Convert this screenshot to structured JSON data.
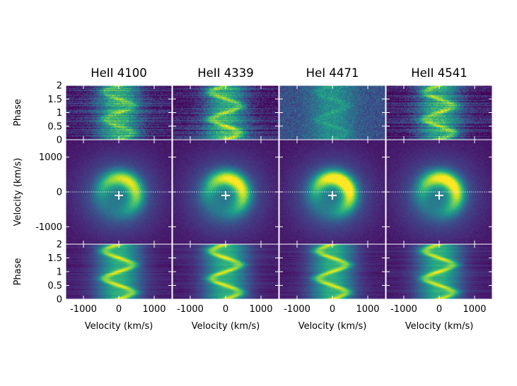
{
  "chart_data": {
    "type": "heatmap",
    "description_units": {
      "velocity": "km/s",
      "phase": "orbital phase"
    },
    "columns": [
      {
        "title": "HeII 4100",
        "map_ring_strength": 0.75,
        "trail_contrast": 0.55
      },
      {
        "title": "HeII 4339",
        "map_ring_strength": 0.85,
        "trail_contrast": 0.85
      },
      {
        "title": "HeI 4471",
        "map_ring_strength": 1.0,
        "trail_contrast": 0.4
      },
      {
        "title": "HeII 4541",
        "map_ring_strength": 0.9,
        "trail_contrast": 0.8
      }
    ],
    "rows": [
      {
        "name": "observed_trailed_spectra",
        "ylabel": "Phase",
        "yticks": [
          0.5,
          1,
          1.5,
          2
        ],
        "ylim": [
          0,
          2
        ]
      },
      {
        "name": "doppler_map",
        "ylabel": "Velocity (km/s)",
        "yticks": [
          -1000,
          0,
          1000
        ],
        "ylim": [
          -1500,
          1500
        ]
      },
      {
        "name": "reconstructed_trailed_spectra",
        "ylabel": "Phase",
        "yticks": [
          0,
          0.5,
          1,
          1.5,
          2
        ],
        "ylim": [
          0,
          2
        ]
      }
    ],
    "top_panel_extra_tick": "0",
    "xlabel": "Velocity (km/s)",
    "xticks": [
      -1000,
      0,
      1000
    ],
    "xlim": [
      -1500,
      1500
    ],
    "map_center_marker": {
      "vx": 0,
      "vy": -100,
      "symbol": "+"
    },
    "colormap": "viridis"
  }
}
